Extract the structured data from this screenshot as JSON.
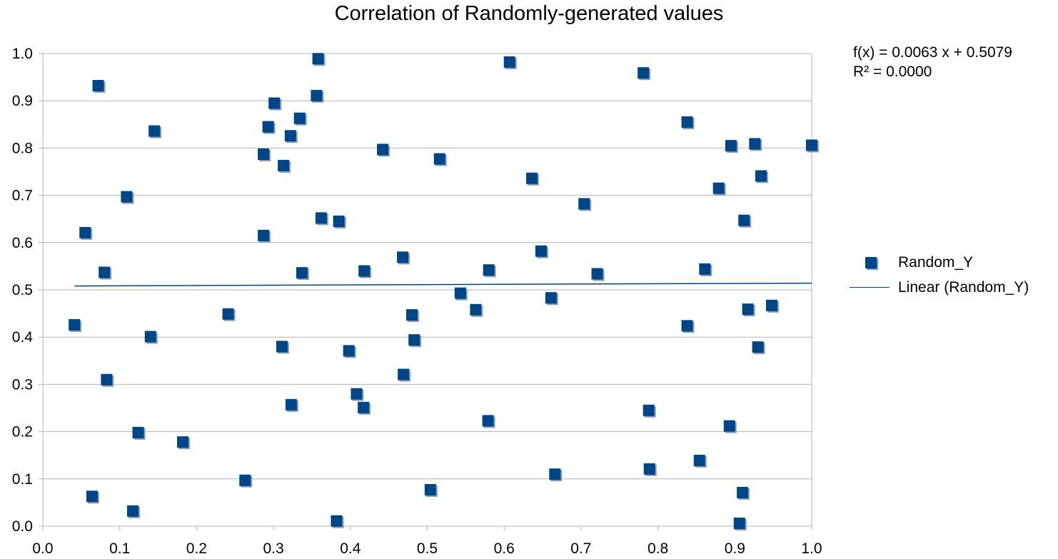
{
  "chart_data": {
    "type": "scatter",
    "title": "Correlation of Randomly-generated values",
    "xlabel": "",
    "ylabel": "",
    "xlim": [
      0,
      1
    ],
    "ylim": [
      0,
      1
    ],
    "x_ticks": [
      "0.0",
      "0.1",
      "0.2",
      "0.3",
      "0.4",
      "0.5",
      "0.6",
      "0.7",
      "0.8",
      "0.9",
      "1.0"
    ],
    "y_ticks": [
      "0.0",
      "0.1",
      "0.2",
      "0.3",
      "0.4",
      "0.5",
      "0.6",
      "0.7",
      "0.8",
      "0.9",
      "1.0"
    ],
    "grid": true,
    "legend_position": "right",
    "equation": "f(x) = 0.0063 x + 0.5079",
    "r_squared": "R² = 0.0000",
    "series": [
      {
        "name": "Random_Y",
        "color": "#004586",
        "marker": "square",
        "points": [
          [
            0.041,
            0.426
          ],
          [
            0.055,
            0.621
          ],
          [
            0.064,
            0.063
          ],
          [
            0.072,
            0.932
          ],
          [
            0.08,
            0.537
          ],
          [
            0.083,
            0.31
          ],
          [
            0.109,
            0.697
          ],
          [
            0.117,
            0.032
          ],
          [
            0.124,
            0.198
          ],
          [
            0.14,
            0.401
          ],
          [
            0.145,
            0.836
          ],
          [
            0.182,
            0.178
          ],
          [
            0.241,
            0.449
          ],
          [
            0.263,
            0.097
          ],
          [
            0.287,
            0.615
          ],
          [
            0.287,
            0.787
          ],
          [
            0.293,
            0.845
          ],
          [
            0.301,
            0.895
          ],
          [
            0.311,
            0.38
          ],
          [
            0.313,
            0.763
          ],
          [
            0.322,
            0.826
          ],
          [
            0.323,
            0.257
          ],
          [
            0.334,
            0.863
          ],
          [
            0.337,
            0.536
          ],
          [
            0.356,
            0.911
          ],
          [
            0.358,
            0.989
          ],
          [
            0.362,
            0.652
          ],
          [
            0.382,
            0.011
          ],
          [
            0.385,
            0.645
          ],
          [
            0.398,
            0.371
          ],
          [
            0.408,
            0.28
          ],
          [
            0.417,
            0.251
          ],
          [
            0.418,
            0.54
          ],
          [
            0.442,
            0.797
          ],
          [
            0.468,
            0.569
          ],
          [
            0.469,
            0.321
          ],
          [
            0.48,
            0.447
          ],
          [
            0.483,
            0.394
          ],
          [
            0.504,
            0.077
          ],
          [
            0.516,
            0.777
          ],
          [
            0.543,
            0.493
          ],
          [
            0.563,
            0.458
          ],
          [
            0.579,
            0.223
          ],
          [
            0.58,
            0.542
          ],
          [
            0.607,
            0.982
          ],
          [
            0.636,
            0.736
          ],
          [
            0.648,
            0.582
          ],
          [
            0.661,
            0.483
          ],
          [
            0.666,
            0.11
          ],
          [
            0.704,
            0.682
          ],
          [
            0.721,
            0.534
          ],
          [
            0.781,
            0.959
          ],
          [
            0.788,
            0.245
          ],
          [
            0.789,
            0.121
          ],
          [
            0.838,
            0.424
          ],
          [
            0.838,
            0.855
          ],
          [
            0.854,
            0.139
          ],
          [
            0.861,
            0.544
          ],
          [
            0.879,
            0.715
          ],
          [
            0.893,
            0.212
          ],
          [
            0.895,
            0.805
          ],
          [
            0.906,
            0.006
          ],
          [
            0.91,
            0.071
          ],
          [
            0.912,
            0.647
          ],
          [
            0.917,
            0.459
          ],
          [
            0.926,
            0.809
          ],
          [
            0.93,
            0.379
          ],
          [
            0.934,
            0.741
          ],
          [
            0.948,
            0.467
          ],
          [
            1.0,
            0.806
          ]
        ]
      },
      {
        "name": "Linear (Random_Y)",
        "color": "#004586",
        "type": "line",
        "slope": 0.0063,
        "intercept": 0.5079,
        "x_range": [
          0.041,
          1.0
        ]
      }
    ]
  }
}
